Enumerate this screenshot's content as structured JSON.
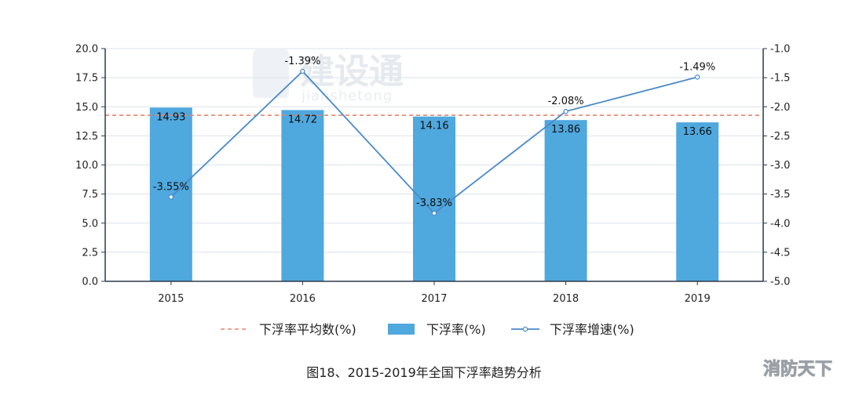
{
  "chart_data": {
    "type": "bar",
    "categories": [
      "2015",
      "2016",
      "2017",
      "2018",
      "2019"
    ],
    "series": [
      {
        "name": "下浮率(%)",
        "type": "bar",
        "axis": "left",
        "color": "#4fa8de",
        "values": [
          14.93,
          14.72,
          14.16,
          13.86,
          13.66
        ],
        "labels": [
          "14.93",
          "14.72",
          "14.16",
          "13.86",
          "13.66"
        ]
      },
      {
        "name": "下浮率增速(%)",
        "type": "line",
        "axis": "right",
        "color": "#4a8ac8",
        "values": [
          -3.55,
          -1.39,
          -3.83,
          -2.08,
          -1.49
        ],
        "labels": [
          "-3.55%",
          "-1.39%",
          "-3.83%",
          "-2.08%",
          "-1.49%"
        ]
      },
      {
        "name": "下浮率平均数(%)",
        "type": "reference-line",
        "axis": "left",
        "color": "#e8836f",
        "value": 14.27
      }
    ],
    "y_left": {
      "ylim": [
        0,
        20
      ],
      "ticks": [
        "0.0",
        "2.5",
        "5.0",
        "7.5",
        "10.0",
        "12.5",
        "15.0",
        "17.5",
        "20.0"
      ]
    },
    "y_right": {
      "ylim": [
        -5,
        -1
      ],
      "ticks": [
        "-5.0",
        "-4.5",
        "-4.0",
        "-3.5",
        "-3.0",
        "-2.5",
        "-2.0",
        "-1.5",
        "-1.0"
      ]
    },
    "grid": true,
    "legend_position": "bottom",
    "caption": "图18、2015-2019年全国下浮率趋势分析",
    "watermark": {
      "main": "建设通",
      "sub": "jianshetong"
    },
    "corner_mark": "消防天下"
  }
}
